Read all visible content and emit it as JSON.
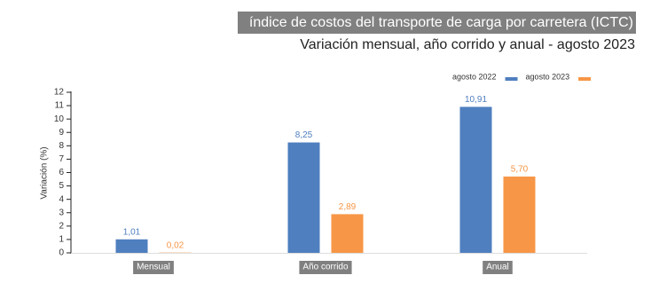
{
  "chart_data": {
    "type": "bar",
    "title": "índice de costos del transporte de carga por carretera (ICTC)",
    "subtitle": "Variación mensual, año corrido y anual - agosto 2023",
    "y_label": "Variación (%)",
    "categories": [
      "Mensual",
      "Año corrido",
      "Anual"
    ],
    "series": [
      {
        "name": "agosto 2022",
        "color": "#4f7fbf",
        "values": [
          1.01,
          8.25,
          10.91
        ],
        "value_labels": [
          "1,01",
          "8,25",
          "10,91"
        ]
      },
      {
        "name": "agosto 2023",
        "color": "#f79646",
        "values": [
          0.02,
          2.89,
          5.7
        ],
        "value_labels": [
          "0,02",
          "2,89",
          "5,70"
        ]
      }
    ],
    "ylim": [
      0,
      12
    ],
    "yticks": [
      0,
      1,
      2,
      3,
      4,
      5,
      6,
      7,
      8,
      9,
      10,
      11,
      12
    ]
  }
}
